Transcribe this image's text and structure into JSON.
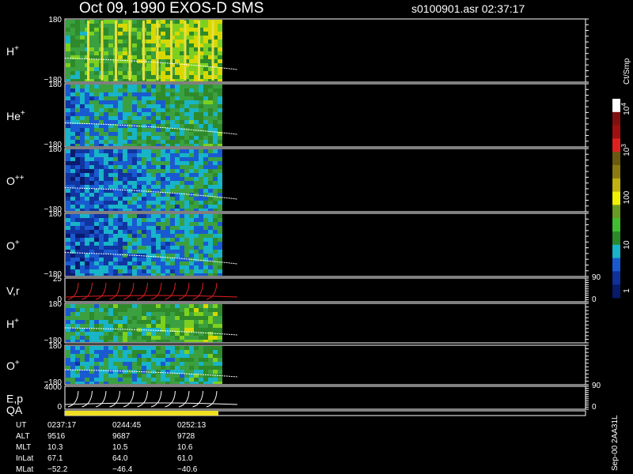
{
  "header": {
    "title": "Oct 09, 1990   EXOS-D SMS",
    "file": "s0100901.asr  02:37:17"
  },
  "panels": [
    {
      "label": "H",
      "sup": "+",
      "top": "180",
      "bottom": "−180"
    },
    {
      "label": "He",
      "sup": "+",
      "top": "180",
      "bottom": "−180"
    },
    {
      "label": "O",
      "sup": "++",
      "top": "180",
      "bottom": "−180"
    },
    {
      "label": "O",
      "sup": "+",
      "top": "180",
      "bottom": "−180"
    },
    {
      "label": "V,r",
      "sup": "",
      "top": "25",
      "bottom": "0",
      "rtop": "90",
      "rbottom": "0"
    },
    {
      "label": "H",
      "sup": "+",
      "top": "180",
      "bottom": "−180"
    },
    {
      "label": "O",
      "sup": "+",
      "top": "180",
      "bottom": "−180"
    },
    {
      "label": "E,p",
      "sup": "",
      "top": "4000",
      "bottom": "0",
      "rtop": "90",
      "rbottom": "0"
    }
  ],
  "qa": "QA",
  "colorbar": {
    "unit": "Ct/Smp",
    "labels": [
      {
        "base": "10",
        "sup": "4"
      },
      {
        "base": "10",
        "sup": "3"
      },
      {
        "base": "100",
        "sup": ""
      },
      {
        "base": "10",
        "sup": ""
      },
      {
        "base": "1",
        "sup": ""
      }
    ]
  },
  "footer": {
    "rows": [
      [
        "UT",
        "0237:17",
        "0244:45",
        "0252:13"
      ],
      [
        "ALT",
        "9516",
        "9687",
        "9728"
      ],
      [
        "MLT",
        "10.3",
        "10.5",
        "10.6"
      ],
      [
        "InLat",
        "67.1",
        "64.0",
        "61.0"
      ],
      [
        "MLat",
        "−52.2",
        "−46.4",
        "−40.6"
      ]
    ]
  },
  "stamp": "Sep-00 2AA31L"
}
